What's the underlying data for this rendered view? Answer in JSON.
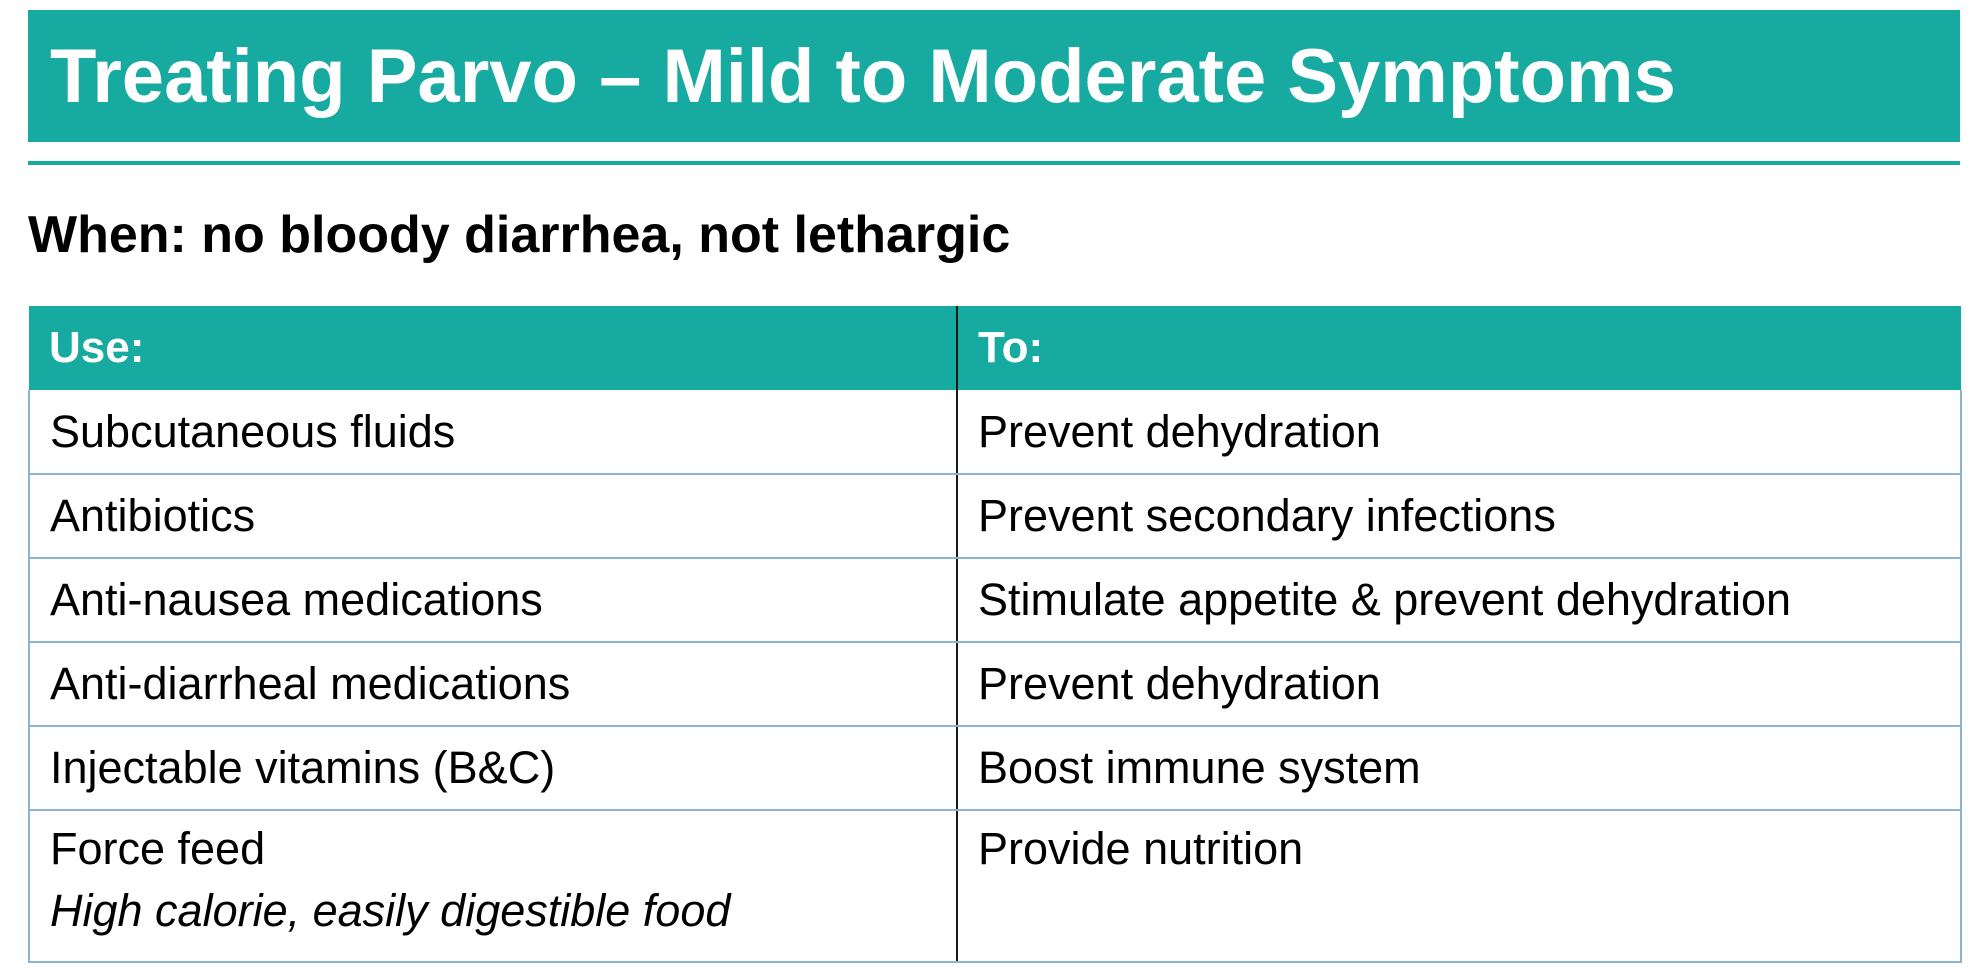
{
  "slide": {
    "title": "Treating Parvo – Mild to Moderate Symptoms",
    "subtitle": "When: no bloody diarrhea, not lethargic",
    "accent_color": "#16aaa0"
  },
  "table": {
    "headers": [
      "Use:",
      "To:"
    ],
    "rows": [
      {
        "use": "Subcutaneous fluids",
        "to": "Prevent dehydration"
      },
      {
        "use": "Antibiotics",
        "to": "Prevent secondary infections"
      },
      {
        "use": "Anti-nausea medications",
        "to": "Stimulate appetite & prevent dehydration"
      },
      {
        "use": "Anti-diarrheal medications",
        "to": "Prevent dehydration"
      },
      {
        "use": "Injectable vitamins (B&C)",
        "to": "Boost immune system"
      },
      {
        "use": "Force feed",
        "note": "High calorie, easily digestible food",
        "to": "Provide nutrition"
      }
    ]
  }
}
